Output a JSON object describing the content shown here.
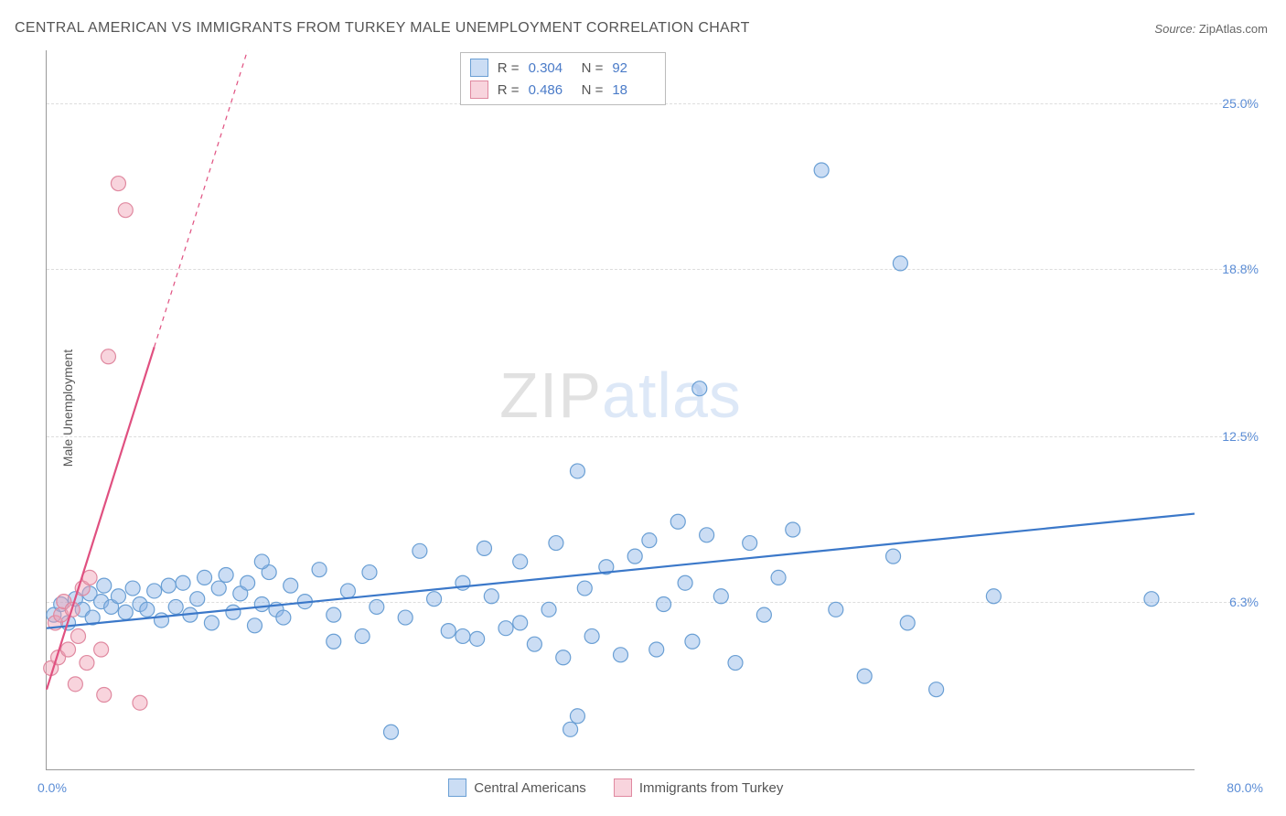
{
  "title": "CENTRAL AMERICAN VS IMMIGRANTS FROM TURKEY MALE UNEMPLOYMENT CORRELATION CHART",
  "source_label": "Source:",
  "source_value": "ZipAtlas.com",
  "ylabel": "Male Unemployment",
  "watermark_a": "ZIP",
  "watermark_b": "atlas",
  "chart": {
    "type": "scatter",
    "background_color": "#ffffff",
    "grid_color": "#dddddd",
    "axis_color": "#999999",
    "tick_label_color": "#5b8dd6",
    "xlim": [
      0,
      80
    ],
    "ylim": [
      0,
      27
    ],
    "xticks": [
      {
        "value": 0,
        "label": "0.0%"
      },
      {
        "value": 80,
        "label": "80.0%"
      }
    ],
    "yticks": [
      {
        "value": 6.3,
        "label": "6.3%"
      },
      {
        "value": 12.5,
        "label": "12.5%"
      },
      {
        "value": 18.8,
        "label": "18.8%"
      },
      {
        "value": 25.0,
        "label": "25.0%"
      }
    ],
    "series": [
      {
        "name": "Central Americans",
        "marker_fill": "rgba(140,180,230,0.45)",
        "marker_stroke": "#6a9fd4",
        "marker_radius": 8,
        "line_color": "#3b78c9",
        "line_width": 2.2,
        "trend": {
          "x1": 0,
          "y1": 5.3,
          "x2": 80,
          "y2": 9.6,
          "dash_after_x": null
        },
        "R": "0.304",
        "N": "92",
        "points": [
          [
            0.5,
            5.8
          ],
          [
            1.0,
            6.2
          ],
          [
            1.5,
            5.5
          ],
          [
            2.0,
            6.4
          ],
          [
            2.5,
            6.0
          ],
          [
            3.0,
            6.6
          ],
          [
            3.2,
            5.7
          ],
          [
            3.8,
            6.3
          ],
          [
            4.0,
            6.9
          ],
          [
            4.5,
            6.1
          ],
          [
            5.0,
            6.5
          ],
          [
            5.5,
            5.9
          ],
          [
            6.0,
            6.8
          ],
          [
            6.5,
            6.2
          ],
          [
            7.0,
            6.0
          ],
          [
            7.5,
            6.7
          ],
          [
            8.0,
            5.6
          ],
          [
            8.5,
            6.9
          ],
          [
            9.0,
            6.1
          ],
          [
            9.5,
            7.0
          ],
          [
            10.0,
            5.8
          ],
          [
            10.5,
            6.4
          ],
          [
            11.0,
            7.2
          ],
          [
            11.5,
            5.5
          ],
          [
            12.0,
            6.8
          ],
          [
            12.5,
            7.3
          ],
          [
            13.0,
            5.9
          ],
          [
            13.5,
            6.6
          ],
          [
            14.0,
            7.0
          ],
          [
            14.5,
            5.4
          ],
          [
            15.0,
            6.2
          ],
          [
            15.5,
            7.4
          ],
          [
            16.0,
            6.0
          ],
          [
            16.5,
            5.7
          ],
          [
            17.0,
            6.9
          ],
          [
            18.0,
            6.3
          ],
          [
            19.0,
            7.5
          ],
          [
            20.0,
            5.8
          ],
          [
            21.0,
            6.7
          ],
          [
            22.0,
            5.0
          ],
          [
            22.5,
            7.4
          ],
          [
            23.0,
            6.1
          ],
          [
            24.0,
            1.4
          ],
          [
            25.0,
            5.7
          ],
          [
            26.0,
            8.2
          ],
          [
            27.0,
            6.4
          ],
          [
            28.0,
            5.2
          ],
          [
            29.0,
            7.0
          ],
          [
            30.0,
            4.9
          ],
          [
            30.5,
            8.3
          ],
          [
            31.0,
            6.5
          ],
          [
            32.0,
            5.3
          ],
          [
            33.0,
            7.8
          ],
          [
            34.0,
            4.7
          ],
          [
            35.0,
            6.0
          ],
          [
            35.5,
            8.5
          ],
          [
            36.0,
            4.2
          ],
          [
            36.5,
            1.5
          ],
          [
            37.0,
            11.2
          ],
          [
            37.5,
            6.8
          ],
          [
            38.0,
            5.0
          ],
          [
            39.0,
            7.6
          ],
          [
            40.0,
            4.3
          ],
          [
            41.0,
            8.0
          ],
          [
            42.0,
            8.6
          ],
          [
            42.5,
            4.5
          ],
          [
            43.0,
            6.2
          ],
          [
            44.0,
            9.3
          ],
          [
            44.5,
            7.0
          ],
          [
            45.0,
            4.8
          ],
          [
            45.5,
            14.3
          ],
          [
            46.0,
            8.8
          ],
          [
            47.0,
            6.5
          ],
          [
            48.0,
            4.0
          ],
          [
            49.0,
            8.5
          ],
          [
            50.0,
            5.8
          ],
          [
            51.0,
            7.2
          ],
          [
            52.0,
            9.0
          ],
          [
            54.0,
            22.5
          ],
          [
            55.0,
            6.0
          ],
          [
            57.0,
            3.5
          ],
          [
            59.0,
            8.0
          ],
          [
            59.5,
            19.0
          ],
          [
            60.0,
            5.5
          ],
          [
            62.0,
            3.0
          ],
          [
            66.0,
            6.5
          ],
          [
            77.0,
            6.4
          ],
          [
            37.0,
            2.0
          ],
          [
            15.0,
            7.8
          ],
          [
            20.0,
            4.8
          ],
          [
            29.0,
            5.0
          ],
          [
            33.0,
            5.5
          ]
        ]
      },
      {
        "name": "Immigrants from Turkey",
        "marker_fill": "rgba(240,160,180,0.45)",
        "marker_stroke": "#e089a0",
        "marker_radius": 8,
        "line_color": "#e05080",
        "line_width": 2.2,
        "trend": {
          "x1": 0,
          "y1": 3.0,
          "x2": 14,
          "y2": 27.0,
          "dash_after_x": 7.5
        },
        "R": "0.486",
        "N": "18",
        "points": [
          [
            0.3,
            3.8
          ],
          [
            0.6,
            5.5
          ],
          [
            0.8,
            4.2
          ],
          [
            1.0,
            5.8
          ],
          [
            1.2,
            6.3
          ],
          [
            1.5,
            4.5
          ],
          [
            1.8,
            6.0
          ],
          [
            2.0,
            3.2
          ],
          [
            2.2,
            5.0
          ],
          [
            2.5,
            6.8
          ],
          [
            2.8,
            4.0
          ],
          [
            3.0,
            7.2
          ],
          [
            3.8,
            4.5
          ],
          [
            4.0,
            2.8
          ],
          [
            4.3,
            15.5
          ],
          [
            5.0,
            22.0
          ],
          [
            5.5,
            21.0
          ],
          [
            6.5,
            2.5
          ]
        ]
      }
    ]
  },
  "stats_box": {
    "R_label": "R =",
    "N_label": "N ="
  },
  "legend": {
    "series1_label": "Central Americans",
    "series2_label": "Immigrants from Turkey"
  }
}
